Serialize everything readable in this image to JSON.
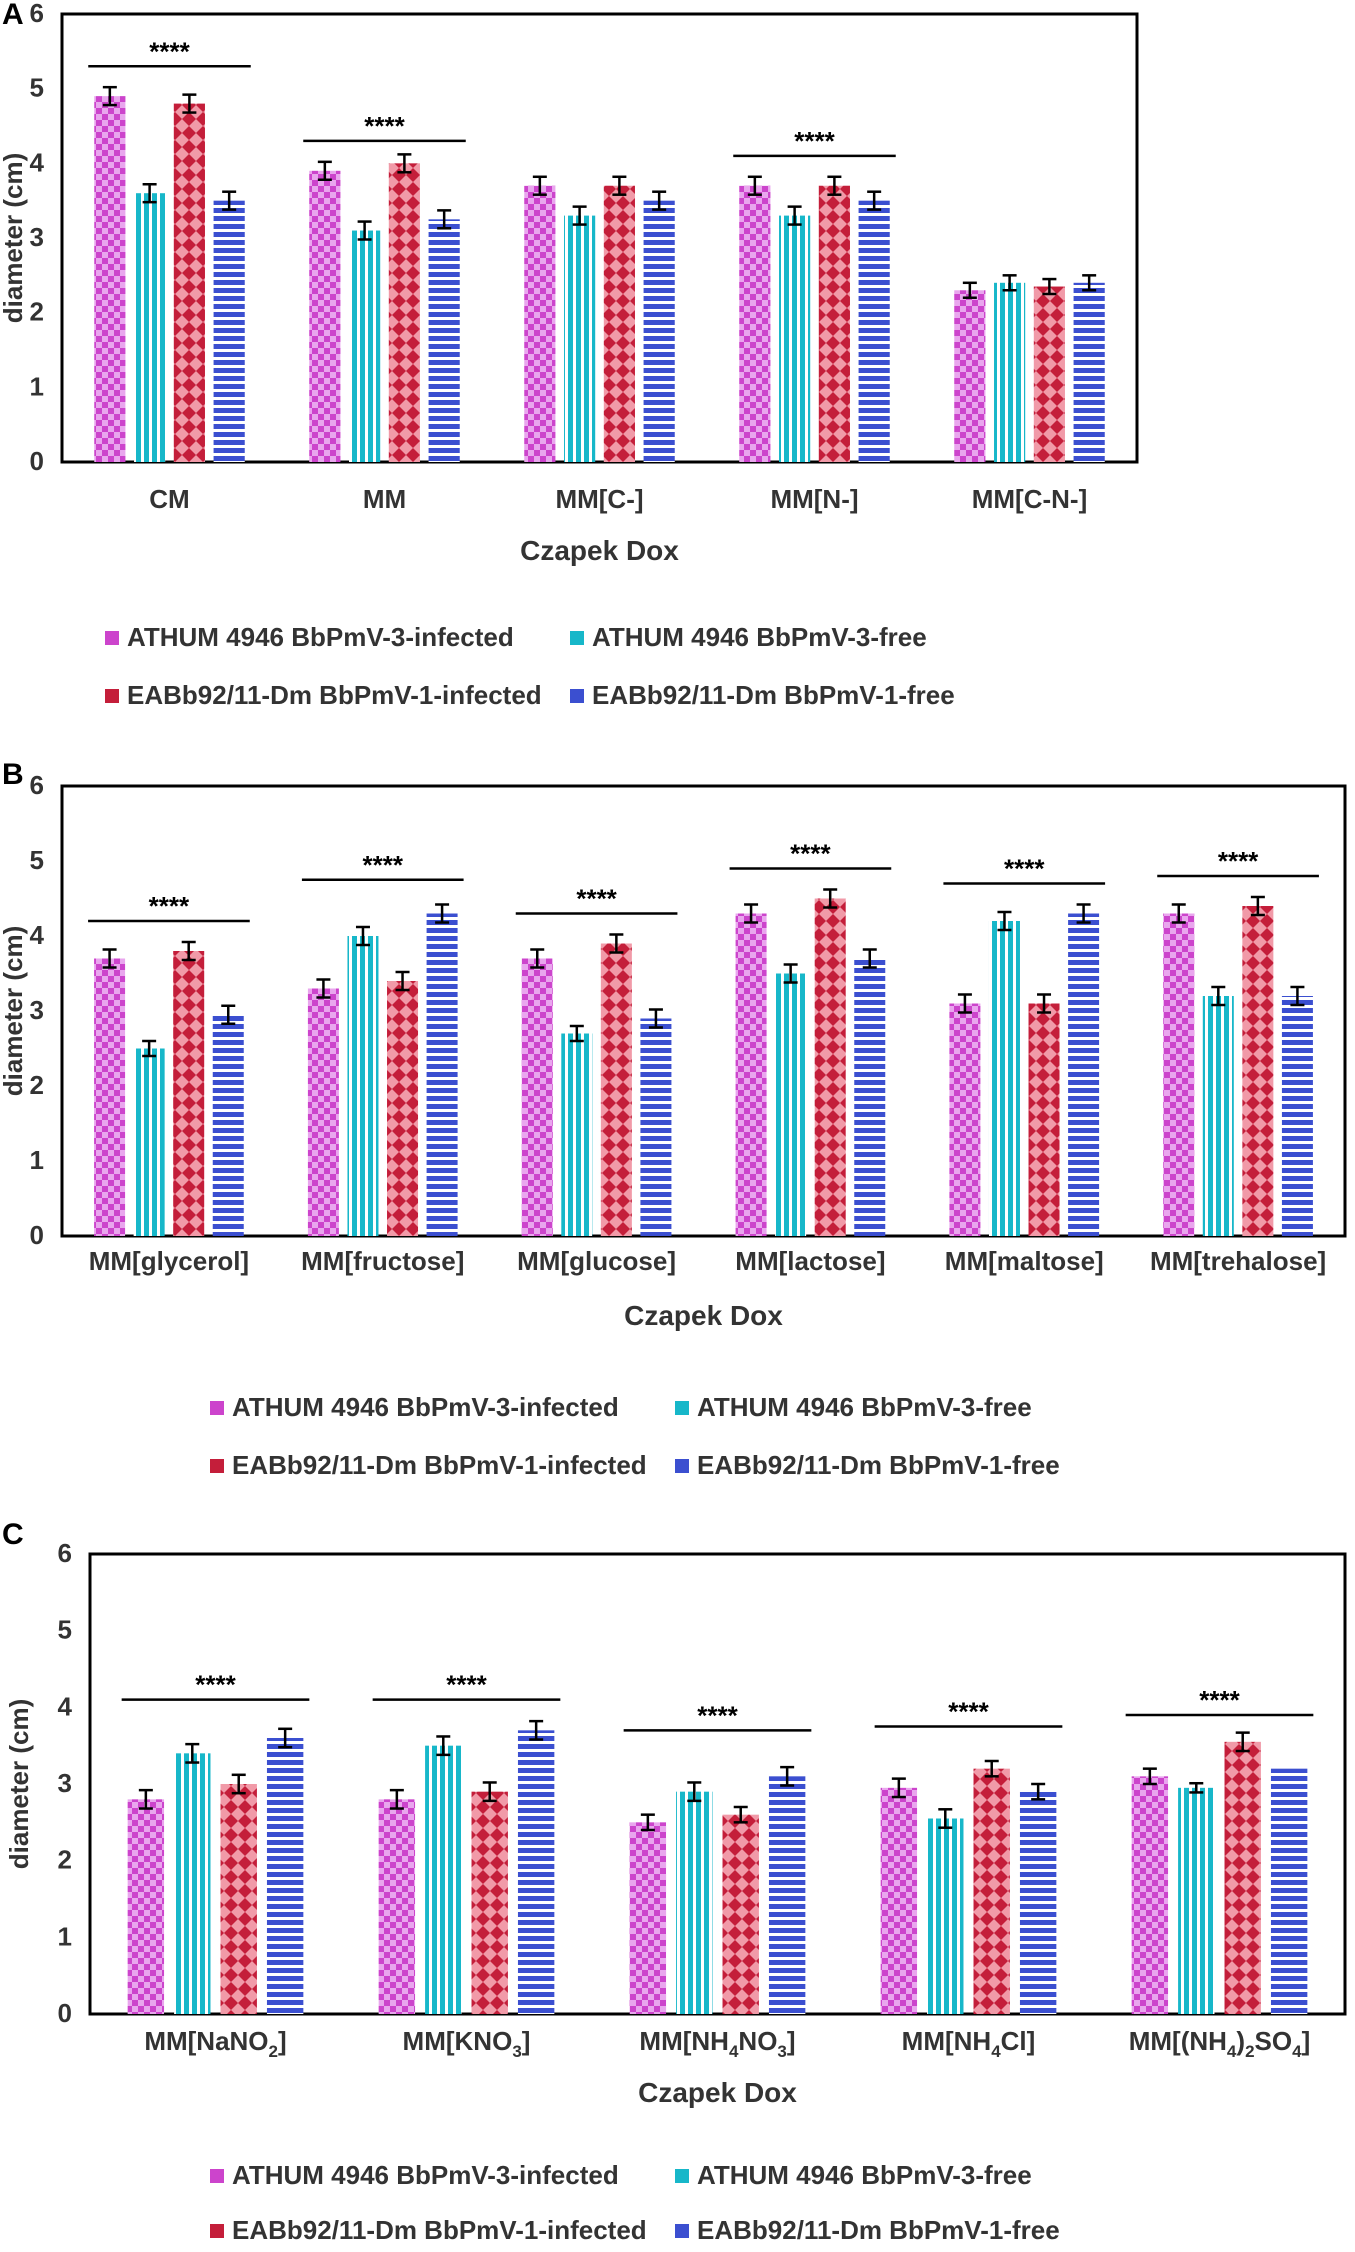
{
  "colors": {
    "infected_a": "#cc44cc",
    "free_a": "#17b7c9",
    "infected_b": "#c41e3a",
    "free_b": "#3b4fd0"
  },
  "chart_data": [
    {
      "type": "bar",
      "panel_label": "A",
      "xlabel": "Czapek Dox",
      "ylabel": "diameter (cm)",
      "ylim": [
        0,
        6
      ],
      "yticks": [
        "0",
        "1",
        "2",
        "3",
        "4",
        "5",
        "6"
      ],
      "categories": [
        "CM",
        "MM",
        "MM[C-]",
        "MM[N-]",
        "MM[C-N-]"
      ],
      "series": [
        {
          "name": "ATHUM 4946 BbPmV-3-infected",
          "values": [
            4.9,
            3.9,
            3.7,
            3.7,
            2.3
          ],
          "errors": [
            0.12,
            0.12,
            0.12,
            0.12,
            0.1
          ]
        },
        {
          "name": "ATHUM 4946 BbPmV-3-free",
          "values": [
            3.6,
            3.1,
            3.3,
            3.3,
            2.4
          ],
          "errors": [
            0.12,
            0.12,
            0.12,
            0.12,
            0.1
          ]
        },
        {
          "name": "EABb92/11-Dm BbPmV-1-infected",
          "values": [
            4.8,
            4.0,
            3.7,
            3.7,
            2.35
          ],
          "errors": [
            0.12,
            0.12,
            0.12,
            0.12,
            0.1
          ]
        },
        {
          "name": "EABb92/11-Dm BbPmV-1-free",
          "values": [
            3.5,
            3.25,
            3.5,
            3.5,
            2.4
          ],
          "errors": [
            0.12,
            0.12,
            0.12,
            0.12,
            0.1
          ]
        }
      ],
      "significance": [
        {
          "category_index": 0,
          "label": "****",
          "y": 5.3
        },
        {
          "category_index": 1,
          "label": "****",
          "y": 4.3
        },
        {
          "category_index": 3,
          "label": "****",
          "y": 4.1
        }
      ]
    },
    {
      "type": "bar",
      "panel_label": "B",
      "xlabel": "Czapek Dox",
      "ylabel": "diameter (cm)",
      "ylim": [
        0,
        6
      ],
      "yticks": [
        "0",
        "1",
        "2",
        "3",
        "4",
        "5",
        "6"
      ],
      "categories": [
        "MM[glycerol]",
        "MM[fructose]",
        "MM[glucose]",
        "MM[lactose]",
        "MM[maltose]",
        "MM[trehalose]"
      ],
      "series": [
        {
          "name": "ATHUM 4946 BbPmV-3-infected",
          "values": [
            3.7,
            3.3,
            3.7,
            4.3,
            3.1,
            4.3
          ],
          "errors": [
            0.12,
            0.12,
            0.12,
            0.12,
            0.12,
            0.12
          ]
        },
        {
          "name": "ATHUM 4946 BbPmV-3-free",
          "values": [
            2.5,
            4.0,
            2.7,
            3.5,
            4.2,
            3.2
          ],
          "errors": [
            0.1,
            0.12,
            0.1,
            0.12,
            0.12,
            0.12
          ]
        },
        {
          "name": "EABb92/11-Dm BbPmV-1-infected",
          "values": [
            3.8,
            3.4,
            3.9,
            4.5,
            3.1,
            4.4
          ],
          "errors": [
            0.12,
            0.12,
            0.12,
            0.12,
            0.12,
            0.12
          ]
        },
        {
          "name": "EABb92/11-Dm BbPmV-1-free",
          "values": [
            2.95,
            4.3,
            2.9,
            3.7,
            4.3,
            3.2
          ],
          "errors": [
            0.12,
            0.12,
            0.12,
            0.12,
            0.12,
            0.12
          ]
        }
      ],
      "significance": [
        {
          "category_index": 0,
          "label": "****",
          "y": 4.2
        },
        {
          "category_index": 1,
          "label": "****",
          "y": 4.75
        },
        {
          "category_index": 2,
          "label": "****",
          "y": 4.3
        },
        {
          "category_index": 3,
          "label": "****",
          "y": 4.9
        },
        {
          "category_index": 4,
          "label": "****",
          "y": 4.7
        },
        {
          "category_index": 5,
          "label": "****",
          "y": 4.8
        }
      ]
    },
    {
      "type": "bar",
      "panel_label": "C",
      "xlabel": "Czapek Dox",
      "ylabel": "diameter (cm)",
      "ylim": [
        0,
        6
      ],
      "yticks": [
        "0",
        "1",
        "2",
        "3",
        "4",
        "5",
        "6"
      ],
      "categories": [
        {
          "base": "MM[NaNO",
          "parts": [
            [
              "2",
              "sub"
            ],
            [
              "]",
              "n"
            ]
          ]
        },
        {
          "base": "MM[KNO",
          "parts": [
            [
              "3",
              "sub"
            ],
            [
              "]",
              "n"
            ]
          ]
        },
        {
          "base": "MM[NH",
          "parts": [
            [
              "4",
              "sub"
            ],
            [
              "NO",
              "n"
            ],
            [
              "3",
              "sub"
            ],
            [
              "]",
              "n"
            ]
          ]
        },
        {
          "base": "MM[NH",
          "parts": [
            [
              "4",
              "sub"
            ],
            [
              "Cl]",
              "n"
            ]
          ]
        },
        {
          "base": "MM[(NH",
          "parts": [
            [
              "4",
              "sub"
            ],
            [
              ")",
              "n"
            ],
            [
              "2",
              "sub"
            ],
            [
              "SO",
              "n"
            ],
            [
              "4",
              "sub"
            ],
            [
              "]",
              "n"
            ]
          ]
        }
      ],
      "series": [
        {
          "name": "ATHUM 4946 BbPmV-3-infected",
          "values": [
            2.8,
            2.8,
            2.5,
            2.95,
            3.1
          ],
          "errors": [
            0.12,
            0.12,
            0.1,
            0.12,
            0.1
          ]
        },
        {
          "name": "ATHUM 4946 BbPmV-3-free",
          "values": [
            3.4,
            3.5,
            2.9,
            2.55,
            2.95
          ],
          "errors": [
            0.12,
            0.12,
            0.12,
            0.12,
            0.06
          ]
        },
        {
          "name": "EABb92/11-Dm BbPmV-1-infected",
          "values": [
            3.0,
            2.9,
            2.6,
            3.2,
            3.55
          ],
          "errors": [
            0.12,
            0.12,
            0.1,
            0.1,
            0.12
          ]
        },
        {
          "name": "EABb92/11-Dm BbPmV-1-free",
          "values": [
            3.6,
            3.7,
            3.1,
            2.9,
            3.2
          ],
          "errors": [
            0.12,
            0.12,
            0.12,
            0.1,
            0.0
          ]
        }
      ],
      "significance": [
        {
          "category_index": 0,
          "label": "****",
          "y": 4.1
        },
        {
          "category_index": 1,
          "label": "****",
          "y": 4.1
        },
        {
          "category_index": 2,
          "label": "****",
          "y": 3.7
        },
        {
          "category_index": 3,
          "label": "****",
          "y": 3.75
        },
        {
          "category_index": 4,
          "label": "****",
          "y": 3.9
        }
      ]
    }
  ]
}
